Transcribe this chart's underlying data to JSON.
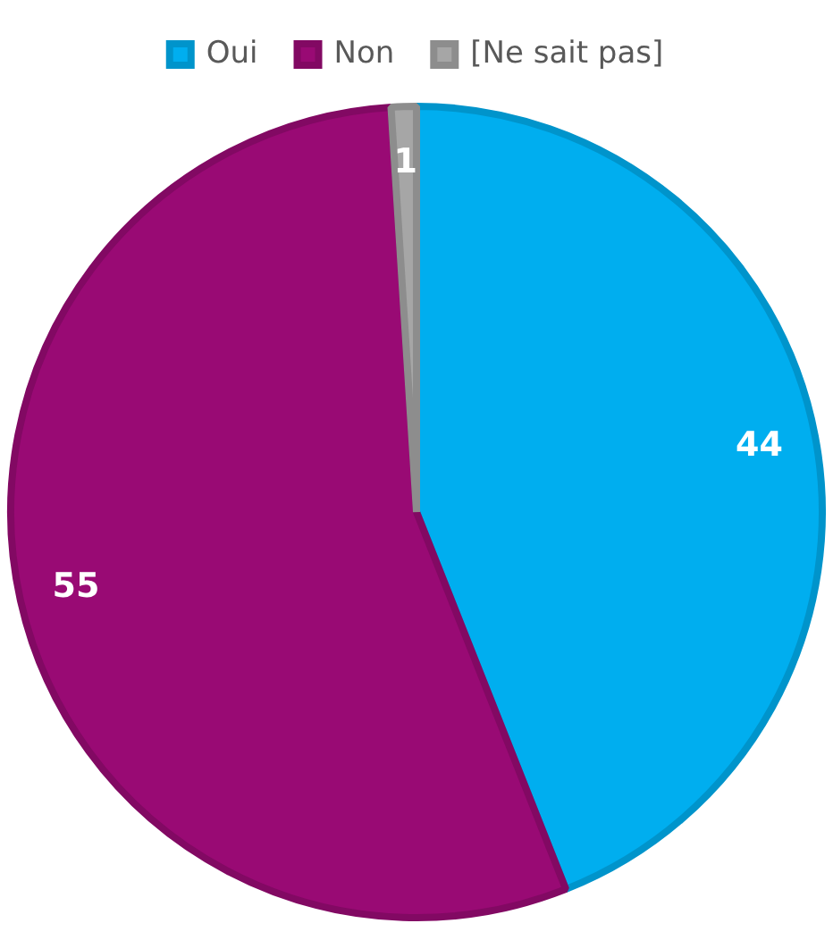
{
  "chart_data": {
    "type": "pie",
    "categories": [
      "Oui",
      "Non",
      "[Ne sait pas]"
    ],
    "values": [
      44,
      55,
      1
    ],
    "colors": [
      "#00aeef",
      "#990a74",
      "#a6a6a6"
    ],
    "legend": "top",
    "data_labels": true
  }
}
